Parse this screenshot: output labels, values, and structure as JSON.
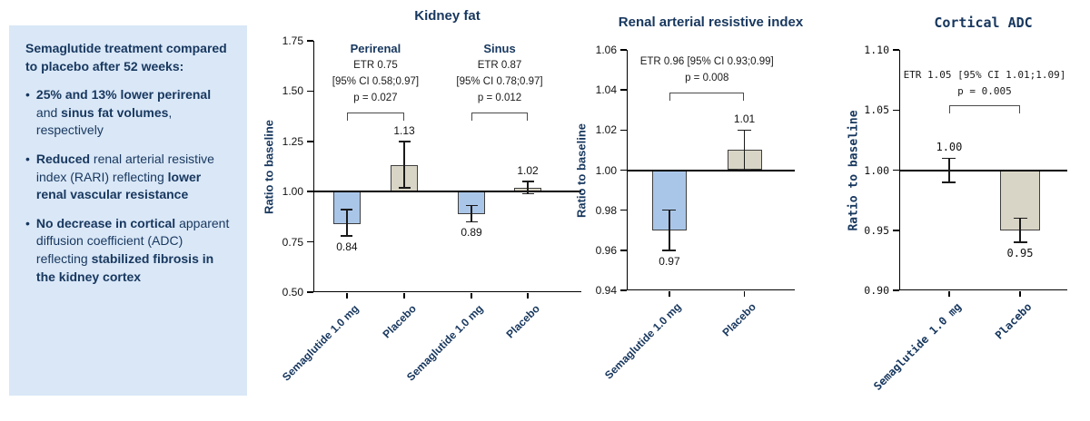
{
  "info_panel": {
    "marker": "•",
    "heading": "Semaglutide treatment compared to placebo after 52 weeks:",
    "bullets": [
      {
        "segments": [
          {
            "text": "25% and 13% lower perirenal",
            "bold": true
          },
          {
            "text": " and ",
            "bold": false
          },
          {
            "text": "sinus fat volumes",
            "bold": true
          },
          {
            "text": ", respectively",
            "bold": false
          }
        ]
      },
      {
        "segments": [
          {
            "text": "Reduced",
            "bold": true
          },
          {
            "text": " renal arterial resistive index (RARI) reflecting ",
            "bold": false
          },
          {
            "text": "lower renal vascular resistance",
            "bold": true
          }
        ]
      },
      {
        "segments": [
          {
            "text": "No decrease in cortical",
            "bold": true
          },
          {
            "text": " apparent diffusion coefficient (ADC) reflecting ",
            "bold": false
          },
          {
            "text": "stabilized fibrosis in the kidney cortex",
            "bold": true
          }
        ]
      }
    ]
  },
  "colors": {
    "panel_bg": "#d9e7f7",
    "navy_text": "#17375e",
    "semaglutide_bar": "#a9c6e8",
    "placebo_bar": "#d9d5c6",
    "axis": "#000000",
    "annotation_text": "#1a1a1a"
  },
  "chart_data": [
    {
      "type": "bar",
      "title": "Kidney fat",
      "ylabel": "Ratio to baseline",
      "xlabel": "",
      "ylim": [
        0.5,
        1.75
      ],
      "yticks": [
        "0.50",
        "0.75",
        "1.00",
        "1.25",
        "1.50",
        "1.75"
      ],
      "baseline": 1.0,
      "grid": false,
      "legend": false,
      "groups": [
        "Perirenal",
        "Sinus"
      ],
      "bars": [
        {
          "group": "Perirenal",
          "category": "Semaglutide 1.0 mg",
          "series": "semaglutide",
          "value": 0.84,
          "ci_low": 0.78,
          "ci_high": 0.91,
          "label": "0.84"
        },
        {
          "group": "Perirenal",
          "category": "Placebo",
          "series": "placebo",
          "value": 1.13,
          "ci_low": 1.02,
          "ci_high": 1.25,
          "label": "1.13"
        },
        {
          "group": "Sinus",
          "category": "Semaglutide 1.0 mg",
          "series": "semaglutide",
          "value": 0.89,
          "ci_low": 0.85,
          "ci_high": 0.93,
          "label": "0.89"
        },
        {
          "group": "Sinus",
          "category": "Placebo",
          "series": "placebo",
          "value": 1.02,
          "ci_low": 0.99,
          "ci_high": 1.05,
          "label": "1.02"
        }
      ],
      "comparisons": [
        {
          "bars": [
            0,
            1
          ],
          "lines": [
            "ETR 0.75",
            "[95% CI 0.58;0.97]",
            "p = 0.027"
          ]
        },
        {
          "bars": [
            2,
            3
          ],
          "lines": [
            "ETR 0.87",
            "[95% CI 0.78;0.97]",
            "p = 0.012"
          ]
        }
      ]
    },
    {
      "type": "bar",
      "title": "Renal arterial resistive index",
      "ylabel": "Ratio to baseline",
      "xlabel": "",
      "ylim": [
        0.94,
        1.06
      ],
      "yticks": [
        "0.94",
        "0.96",
        "0.98",
        "1.00",
        "1.02",
        "1.04",
        "1.06"
      ],
      "baseline": 1.0,
      "grid": false,
      "legend": false,
      "bars": [
        {
          "category": "Semaglutide 1.0 mg",
          "series": "semaglutide",
          "value": 0.97,
          "ci_low": 0.96,
          "ci_high": 0.98,
          "label": "0.97"
        },
        {
          "category": "Placebo",
          "series": "placebo",
          "value": 1.01,
          "ci_low": 1.0,
          "ci_high": 1.02,
          "label": "1.01"
        }
      ],
      "comparisons": [
        {
          "bars": [
            0,
            1
          ],
          "lines": [
            "ETR 0.96 [95% CI 0.93;0.99]",
            "p = 0.008"
          ]
        }
      ]
    },
    {
      "type": "bar",
      "title": "Cortical ADC",
      "ylabel": "Ratio to baseline",
      "xlabel": "",
      "ylim": [
        0.9,
        1.1
      ],
      "yticks": [
        "0.90",
        "0.95",
        "1.00",
        "1.05",
        "1.10"
      ],
      "baseline": 1.0,
      "grid": false,
      "legend": false,
      "bars": [
        {
          "category": "Semaglutide 1.0 mg",
          "series": "semaglutide",
          "value": 1.0,
          "ci_low": 0.99,
          "ci_high": 1.01,
          "label": "1.00"
        },
        {
          "category": "Placebo",
          "series": "placebo",
          "value": 0.95,
          "ci_low": 0.94,
          "ci_high": 0.96,
          "label": "0.95"
        }
      ],
      "comparisons": [
        {
          "bars": [
            0,
            1
          ],
          "lines": [
            "ETR 1.05 [95% CI 1.01;1.09]",
            "p = 0.005"
          ]
        }
      ]
    }
  ]
}
